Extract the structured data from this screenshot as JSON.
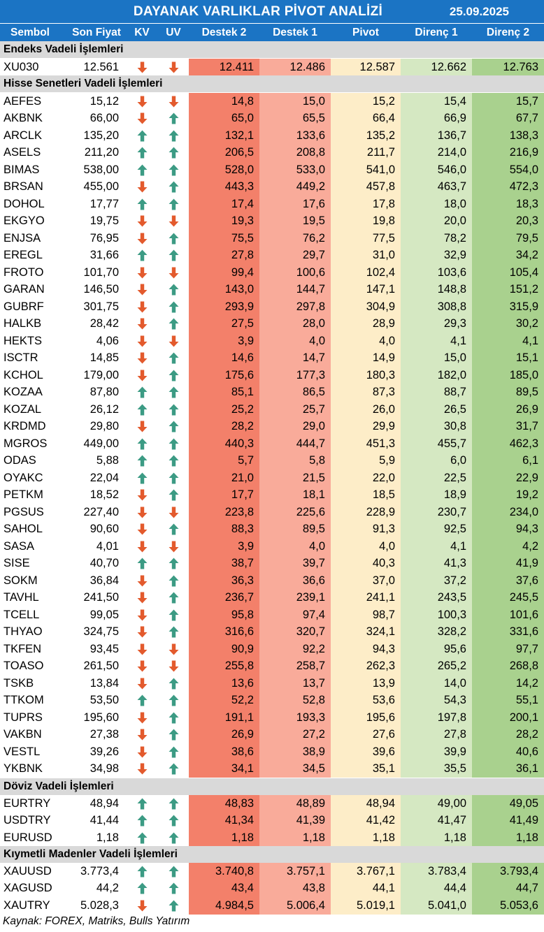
{
  "header": {
    "title": "DAYANAK VARLIKLAR PİVOT ANALİZİ",
    "date": "25.09.2025"
  },
  "columns": [
    "Sembol",
    "Son Fiyat",
    "KV",
    "UV",
    "Destek 2",
    "Destek 1",
    "Pivot",
    "Direnç 1",
    "Direnç 2"
  ],
  "colors": {
    "header_bg": "#1b74c4",
    "section_bg": "#d9d9d9",
    "destek2_bg": "#f3806a",
    "destek1_bg": "#f9ab9a",
    "pivot_bg": "#fdedc8",
    "direnc1_bg": "#d5e8c2",
    "direnc2_bg": "#a9d18e",
    "arrow_up": "#3c9b84",
    "arrow_down": "#e35a2d"
  },
  "sections": [
    {
      "title": "Endeks Vadeli İşlemleri",
      "rows": [
        {
          "sym": "XU030",
          "price": "12.561",
          "kv": "down",
          "uv": "down",
          "d2": "12.411",
          "d1": "12.486",
          "pv": "12.587",
          "r1": "12.662",
          "r2": "12.763"
        }
      ]
    },
    {
      "title": "Hisse Senetleri Vadeli İşlemleri",
      "rows": [
        {
          "sym": "AEFES",
          "price": "15,12",
          "kv": "down",
          "uv": "down",
          "d2": "14,8",
          "d1": "15,0",
          "pv": "15,2",
          "r1": "15,4",
          "r2": "15,7"
        },
        {
          "sym": "AKBNK",
          "price": "66,00",
          "kv": "down",
          "uv": "up",
          "d2": "65,0",
          "d1": "65,5",
          "pv": "66,4",
          "r1": "66,9",
          "r2": "67,7"
        },
        {
          "sym": "ARCLK",
          "price": "135,20",
          "kv": "up",
          "uv": "up",
          "d2": "132,1",
          "d1": "133,6",
          "pv": "135,2",
          "r1": "136,7",
          "r2": "138,3"
        },
        {
          "sym": "ASELS",
          "price": "211,20",
          "kv": "up",
          "uv": "up",
          "d2": "206,5",
          "d1": "208,8",
          "pv": "211,7",
          "r1": "214,0",
          "r2": "216,9"
        },
        {
          "sym": "BIMAS",
          "price": "538,00",
          "kv": "up",
          "uv": "up",
          "d2": "528,0",
          "d1": "533,0",
          "pv": "541,0",
          "r1": "546,0",
          "r2": "554,0"
        },
        {
          "sym": "BRSAN",
          "price": "455,00",
          "kv": "down",
          "uv": "up",
          "d2": "443,3",
          "d1": "449,2",
          "pv": "457,8",
          "r1": "463,7",
          "r2": "472,3"
        },
        {
          "sym": "DOHOL",
          "price": "17,77",
          "kv": "up",
          "uv": "up",
          "d2": "17,4",
          "d1": "17,6",
          "pv": "17,8",
          "r1": "18,0",
          "r2": "18,3"
        },
        {
          "sym": "EKGYO",
          "price": "19,75",
          "kv": "down",
          "uv": "down",
          "d2": "19,3",
          "d1": "19,5",
          "pv": "19,8",
          "r1": "20,0",
          "r2": "20,3"
        },
        {
          "sym": "ENJSA",
          "price": "76,95",
          "kv": "down",
          "uv": "up",
          "d2": "75,5",
          "d1": "76,2",
          "pv": "77,5",
          "r1": "78,2",
          "r2": "79,5"
        },
        {
          "sym": "EREGL",
          "price": "31,66",
          "kv": "up",
          "uv": "up",
          "d2": "27,8",
          "d1": "29,7",
          "pv": "31,0",
          "r1": "32,9",
          "r2": "34,2"
        },
        {
          "sym": "FROTO",
          "price": "101,70",
          "kv": "down",
          "uv": "down",
          "d2": "99,4",
          "d1": "100,6",
          "pv": "102,4",
          "r1": "103,6",
          "r2": "105,4"
        },
        {
          "sym": "GARAN",
          "price": "146,50",
          "kv": "down",
          "uv": "up",
          "d2": "143,0",
          "d1": "144,7",
          "pv": "147,1",
          "r1": "148,8",
          "r2": "151,2"
        },
        {
          "sym": "GUBRF",
          "price": "301,75",
          "kv": "down",
          "uv": "up",
          "d2": "293,9",
          "d1": "297,8",
          "pv": "304,9",
          "r1": "308,8",
          "r2": "315,9"
        },
        {
          "sym": "HALKB",
          "price": "28,42",
          "kv": "down",
          "uv": "up",
          "d2": "27,5",
          "d1": "28,0",
          "pv": "28,9",
          "r1": "29,3",
          "r2": "30,2"
        },
        {
          "sym": "HEKTS",
          "price": "4,06",
          "kv": "down",
          "uv": "down",
          "d2": "3,9",
          "d1": "4,0",
          "pv": "4,0",
          "r1": "4,1",
          "r2": "4,1"
        },
        {
          "sym": "ISCTR",
          "price": "14,85",
          "kv": "down",
          "uv": "up",
          "d2": "14,6",
          "d1": "14,7",
          "pv": "14,9",
          "r1": "15,0",
          "r2": "15,1"
        },
        {
          "sym": "KCHOL",
          "price": "179,00",
          "kv": "down",
          "uv": "up",
          "d2": "175,6",
          "d1": "177,3",
          "pv": "180,3",
          "r1": "182,0",
          "r2": "185,0"
        },
        {
          "sym": "KOZAA",
          "price": "87,80",
          "kv": "up",
          "uv": "up",
          "d2": "85,1",
          "d1": "86,5",
          "pv": "87,3",
          "r1": "88,7",
          "r2": "89,5"
        },
        {
          "sym": "KOZAL",
          "price": "26,12",
          "kv": "up",
          "uv": "up",
          "d2": "25,2",
          "d1": "25,7",
          "pv": "26,0",
          "r1": "26,5",
          "r2": "26,9"
        },
        {
          "sym": "KRDMD",
          "price": "29,80",
          "kv": "down",
          "uv": "up",
          "d2": "28,2",
          "d1": "29,0",
          "pv": "29,9",
          "r1": "30,8",
          "r2": "31,7"
        },
        {
          "sym": "MGROS",
          "price": "449,00",
          "kv": "up",
          "uv": "up",
          "d2": "440,3",
          "d1": "444,7",
          "pv": "451,3",
          "r1": "455,7",
          "r2": "462,3"
        },
        {
          "sym": "ODAS",
          "price": "5,88",
          "kv": "up",
          "uv": "up",
          "d2": "5,7",
          "d1": "5,8",
          "pv": "5,9",
          "r1": "6,0",
          "r2": "6,1"
        },
        {
          "sym": "OYAKC",
          "price": "22,04",
          "kv": "up",
          "uv": "up",
          "d2": "21,0",
          "d1": "21,5",
          "pv": "22,0",
          "r1": "22,5",
          "r2": "22,9"
        },
        {
          "sym": "PETKM",
          "price": "18,52",
          "kv": "down",
          "uv": "up",
          "d2": "17,7",
          "d1": "18,1",
          "pv": "18,5",
          "r1": "18,9",
          "r2": "19,2"
        },
        {
          "sym": "PGSUS",
          "price": "227,40",
          "kv": "down",
          "uv": "down",
          "d2": "223,8",
          "d1": "225,6",
          "pv": "228,9",
          "r1": "230,7",
          "r2": "234,0"
        },
        {
          "sym": "SAHOL",
          "price": "90,60",
          "kv": "down",
          "uv": "up",
          "d2": "88,3",
          "d1": "89,5",
          "pv": "91,3",
          "r1": "92,5",
          "r2": "94,3"
        },
        {
          "sym": "SASA",
          "price": "4,01",
          "kv": "down",
          "uv": "down",
          "d2": "3,9",
          "d1": "4,0",
          "pv": "4,0",
          "r1": "4,1",
          "r2": "4,2"
        },
        {
          "sym": "SISE",
          "price": "40,70",
          "kv": "up",
          "uv": "up",
          "d2": "38,7",
          "d1": "39,7",
          "pv": "40,3",
          "r1": "41,3",
          "r2": "41,9"
        },
        {
          "sym": "SOKM",
          "price": "36,84",
          "kv": "down",
          "uv": "up",
          "d2": "36,3",
          "d1": "36,6",
          "pv": "37,0",
          "r1": "37,2",
          "r2": "37,6"
        },
        {
          "sym": "TAVHL",
          "price": "241,50",
          "kv": "down",
          "uv": "up",
          "d2": "236,7",
          "d1": "239,1",
          "pv": "241,1",
          "r1": "243,5",
          "r2": "245,5"
        },
        {
          "sym": "TCELL",
          "price": "99,05",
          "kv": "down",
          "uv": "up",
          "d2": "95,8",
          "d1": "97,4",
          "pv": "98,7",
          "r1": "100,3",
          "r2": "101,6"
        },
        {
          "sym": "THYAO",
          "price": "324,75",
          "kv": "down",
          "uv": "up",
          "d2": "316,6",
          "d1": "320,7",
          "pv": "324,1",
          "r1": "328,2",
          "r2": "331,6"
        },
        {
          "sym": "TKFEN",
          "price": "93,45",
          "kv": "down",
          "uv": "down",
          "d2": "90,9",
          "d1": "92,2",
          "pv": "94,3",
          "r1": "95,6",
          "r2": "97,7"
        },
        {
          "sym": "TOASO",
          "price": "261,50",
          "kv": "down",
          "uv": "down",
          "d2": "255,8",
          "d1": "258,7",
          "pv": "262,3",
          "r1": "265,2",
          "r2": "268,8"
        },
        {
          "sym": "TSKB",
          "price": "13,84",
          "kv": "down",
          "uv": "up",
          "d2": "13,6",
          "d1": "13,7",
          "pv": "13,9",
          "r1": "14,0",
          "r2": "14,2"
        },
        {
          "sym": "TTKOM",
          "price": "53,50",
          "kv": "up",
          "uv": "up",
          "d2": "52,2",
          "d1": "52,8",
          "pv": "53,6",
          "r1": "54,3",
          "r2": "55,1"
        },
        {
          "sym": "TUPRS",
          "price": "195,60",
          "kv": "down",
          "uv": "up",
          "d2": "191,1",
          "d1": "193,3",
          "pv": "195,6",
          "r1": "197,8",
          "r2": "200,1"
        },
        {
          "sym": "VAKBN",
          "price": "27,38",
          "kv": "down",
          "uv": "up",
          "d2": "26,9",
          "d1": "27,2",
          "pv": "27,6",
          "r1": "27,8",
          "r2": "28,2"
        },
        {
          "sym": "VESTL",
          "price": "39,26",
          "kv": "down",
          "uv": "up",
          "d2": "38,6",
          "d1": "38,9",
          "pv": "39,6",
          "r1": "39,9",
          "r2": "40,6"
        },
        {
          "sym": "YKBNK",
          "price": "34,98",
          "kv": "down",
          "uv": "up",
          "d2": "34,1",
          "d1": "34,5",
          "pv": "35,1",
          "r1": "35,5",
          "r2": "36,1"
        }
      ]
    },
    {
      "title": "Döviz Vadeli İşlemleri",
      "rows": [
        {
          "sym": "EURTRY",
          "price": "48,94",
          "kv": "up",
          "uv": "up",
          "d2": "48,83",
          "d1": "48,89",
          "pv": "48,94",
          "r1": "49,00",
          "r2": "49,05"
        },
        {
          "sym": "USDTRY",
          "price": "41,44",
          "kv": "up",
          "uv": "up",
          "d2": "41,34",
          "d1": "41,39",
          "pv": "41,42",
          "r1": "41,47",
          "r2": "41,49"
        },
        {
          "sym": "EURUSD",
          "price": "1,18",
          "kv": "up",
          "uv": "up",
          "d2": "1,18",
          "d1": "1,18",
          "pv": "1,18",
          "r1": "1,18",
          "r2": "1,18"
        }
      ]
    },
    {
      "title": "Kıymetli Madenler Vadeli İşlemleri",
      "rows": [
        {
          "sym": "XAUUSD",
          "price": "3.773,4",
          "kv": "up",
          "uv": "up",
          "d2": "3.740,8",
          "d1": "3.757,1",
          "pv": "3.767,1",
          "r1": "3.783,4",
          "r2": "3.793,4"
        },
        {
          "sym": "XAGUSD",
          "price": "44,2",
          "kv": "up",
          "uv": "up",
          "d2": "43,4",
          "d1": "43,8",
          "pv": "44,1",
          "r1": "44,4",
          "r2": "44,7"
        },
        {
          "sym": "XAUTRY",
          "price": "5.028,3",
          "kv": "down",
          "uv": "up",
          "d2": "4.984,5",
          "d1": "5.006,4",
          "pv": "5.019,1",
          "r1": "5.041,0",
          "r2": "5.053,6"
        }
      ]
    }
  ],
  "source": "Kaynak: FOREX, Matriks, Bulls Yatırım"
}
